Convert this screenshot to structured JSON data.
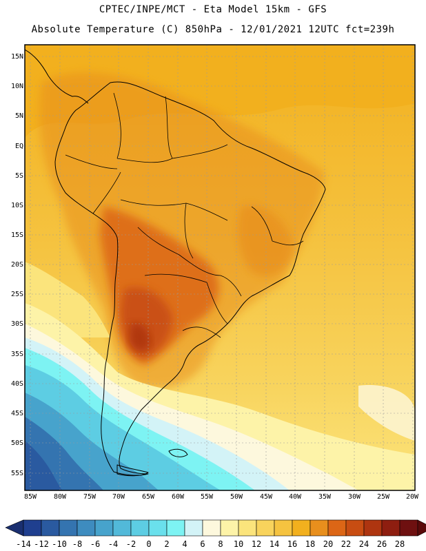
{
  "header": {
    "line1": "CPTEC/INPE/MCT -  Eta Model 15km - GFS",
    "line2": "Absolute Temperature (C) 850hPa - 12/01/2021 12UTC fct=239h"
  },
  "axes": {
    "lat_labels": [
      "15N",
      "10N",
      "5N",
      "EQ",
      "5S",
      "10S",
      "15S",
      "20S",
      "25S",
      "30S",
      "35S",
      "40S",
      "45S",
      "50S",
      "55S"
    ],
    "lon_labels": [
      "85W",
      "80W",
      "75W",
      "70W",
      "65W",
      "60W",
      "55W",
      "50W",
      "45W",
      "40W",
      "35W",
      "30W",
      "25W",
      "20W"
    ]
  },
  "colorbar": {
    "labels": [
      "-14",
      "-12",
      "-10",
      "-8",
      "-6",
      "-4",
      "-2",
      "0",
      "2",
      "4",
      "6",
      "8",
      "10",
      "12",
      "14",
      "16",
      "18",
      "20",
      "22",
      "24",
      "26",
      "28"
    ],
    "colors": [
      "#1f3f8f",
      "#2a5aa0",
      "#3474b0",
      "#3e8cbf",
      "#47a3cc",
      "#52b9d9",
      "#5dcde3",
      "#6ae0ec",
      "#7df3f3",
      "#d3f3f7",
      "#fdf8dd",
      "#fdf3a8",
      "#fbe47c",
      "#f8d35c",
      "#f5c340",
      "#f2b01e",
      "#e88f1d",
      "#dc6616",
      "#c84d12",
      "#ae3510",
      "#8e1e10",
      "#6e1010"
    ]
  }
}
